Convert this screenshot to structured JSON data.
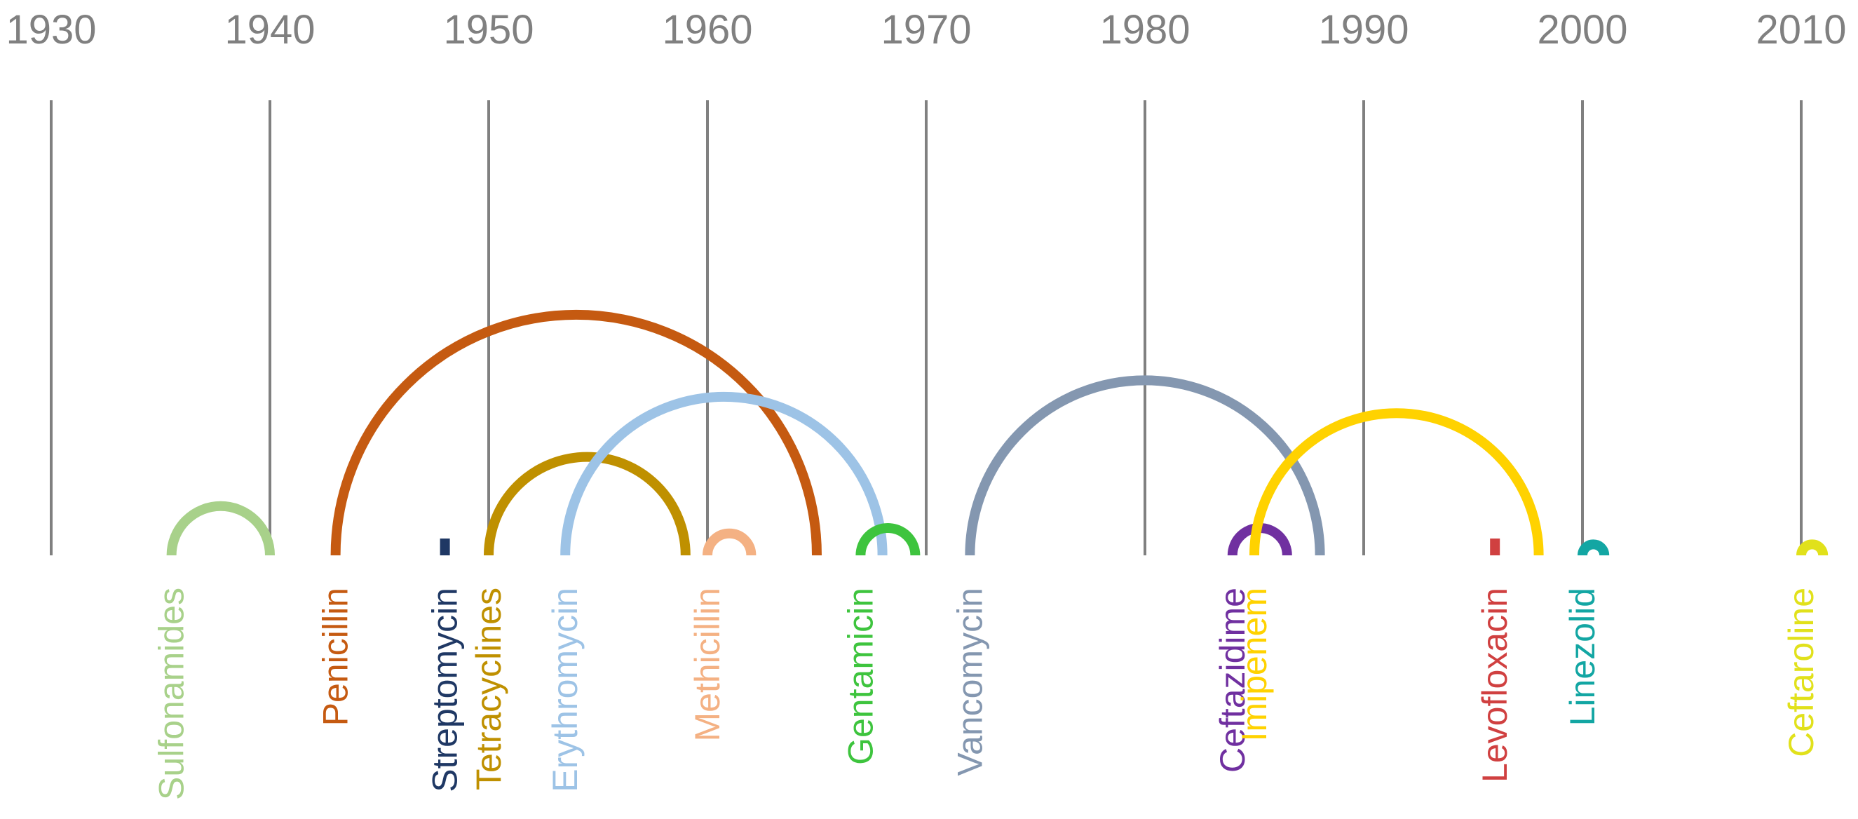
{
  "chart_data": {
    "type": "arc-timeline",
    "x_axis": {
      "min": 1930,
      "max": 2013,
      "ticks": [
        1930,
        1940,
        1950,
        1960,
        1970,
        1980,
        1990,
        2000,
        2010
      ]
    },
    "items": [
      {
        "name": "Sulfonamides",
        "introduced": 1935.5,
        "resistance": 1940.0,
        "color": "#a8d18a"
      },
      {
        "name": "Penicillin",
        "introduced": 1943.0,
        "resistance": 1965.0,
        "color": "#c55a11"
      },
      {
        "name": "Streptomycin",
        "introduced": 1948.0,
        "resistance": 1948.0,
        "color": "#1f3864"
      },
      {
        "name": "Tetracyclines",
        "introduced": 1950.0,
        "resistance": 1959.0,
        "color": "#bf9000"
      },
      {
        "name": "Erythromycin",
        "introduced": 1953.5,
        "resistance": 1968.0,
        "color": "#9dc3e6"
      },
      {
        "name": "Methicillin",
        "introduced": 1960.0,
        "resistance": 1962.0,
        "color": "#f4b183"
      },
      {
        "name": "Gentamicin",
        "introduced": 1967.0,
        "resistance": 1969.5,
        "color": "#3ec43e"
      },
      {
        "name": "Vancomycin",
        "introduced": 1972.0,
        "resistance": 1988.0,
        "color": "#8497b0"
      },
      {
        "name": "Ceftazidime",
        "introduced": 1984.0,
        "resistance": 1986.5,
        "color": "#7030a0"
      },
      {
        "name": "Imipenem",
        "introduced": 1985.0,
        "resistance": 1998.0,
        "color": "#ffd200"
      },
      {
        "name": "Levofloxacin",
        "introduced": 1996.0,
        "resistance": 1996.0,
        "color": "#d04040"
      },
      {
        "name": "Linezolid",
        "introduced": 2000.0,
        "resistance": 2001.0,
        "color": "#13a6a3"
      },
      {
        "name": "Ceftaroline",
        "introduced": 2010.0,
        "resistance": 2011.0,
        "color": "#e1e11b"
      }
    ]
  }
}
